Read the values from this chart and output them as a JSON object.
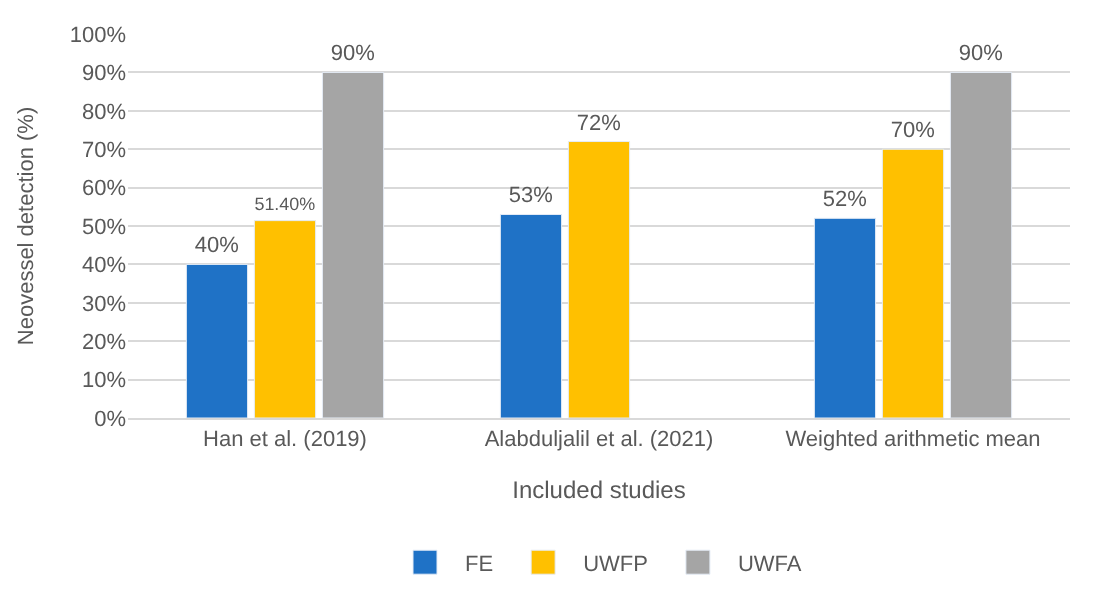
{
  "chart_data": {
    "type": "bar",
    "xlabel": "Included studies",
    "ylabel": "Neovessel detection (%)",
    "categories": [
      "Han et al. (2019)",
      "Alabduljalil et al. (2021)",
      "Weighted arithmetic mean"
    ],
    "series": [
      {
        "name": "FE",
        "color": "#1f72c6",
        "values": [
          40,
          53,
          52
        ],
        "value_labels": [
          "40%",
          "53%",
          "52%"
        ]
      },
      {
        "name": "UWFP",
        "color": "#ffc000",
        "values": [
          51.4,
          72,
          70
        ],
        "value_labels": [
          "51.40%",
          "72%",
          "70%"
        ]
      },
      {
        "name": "UWFA",
        "color": "#a5a5a5",
        "values": [
          90,
          null,
          90
        ],
        "value_labels": [
          "90%",
          null,
          "90%"
        ]
      }
    ],
    "ylim": [
      0,
      100
    ],
    "yticks": [
      {
        "value": 0,
        "label": "0%"
      },
      {
        "value": 10,
        "label": "10%"
      },
      {
        "value": 20,
        "label": "20%"
      },
      {
        "value": 30,
        "label": "30%"
      },
      {
        "value": 40,
        "label": "40%"
      },
      {
        "value": 50,
        "label": "50%"
      },
      {
        "value": 60,
        "label": "60%"
      },
      {
        "value": 70,
        "label": "70%"
      },
      {
        "value": 80,
        "label": "80%"
      },
      {
        "value": 90,
        "label": "90%"
      },
      {
        "value": 100,
        "label": "100%"
      }
    ],
    "grid": "y",
    "legend": "bottom"
  }
}
